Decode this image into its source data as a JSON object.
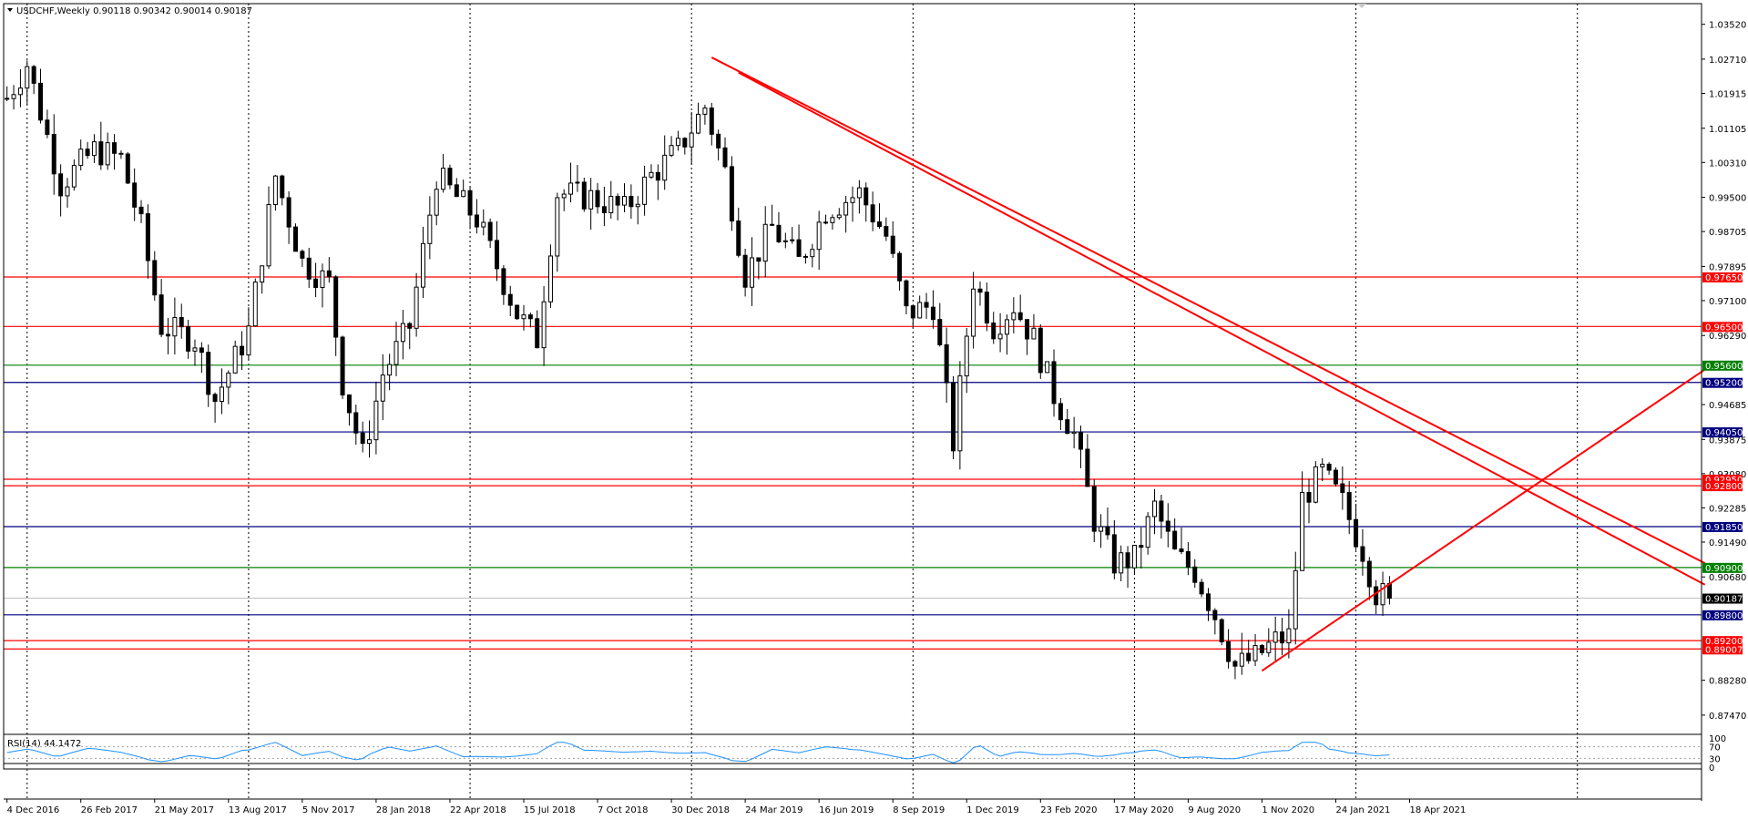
{
  "window": {
    "symbol_line": "USDCHF,Weekly  0.90118 0.90342 0.90014 0.90187",
    "colors": {
      "background": "#ffffff",
      "grid": "#000000",
      "candle": "#000000",
      "red_level": "#ff0000",
      "green_level": "#008000",
      "blue_level": "#000080",
      "trendline": "#ff0000",
      "rsi_line": "#1e90ff"
    }
  },
  "chart_data": {
    "type": "candlestick",
    "symbol": "USDCHF",
    "timeframe": "Weekly",
    "ohlc_header": {
      "open": 0.90118,
      "high": 0.90342,
      "low": 0.90014,
      "close": 0.90187
    },
    "ylim": [
      0.8715,
      1.04
    ],
    "y_ticks": [
      "1.03520",
      "1.02710",
      "1.01915",
      "1.01105",
      "1.00310",
      "0.99500",
      "0.98705",
      "0.97895",
      "0.97100",
      "0.96290",
      "0.94685",
      "0.93875",
      "0.93080",
      "0.92285",
      "0.91490",
      "0.90680",
      "0.88280",
      "0.87470"
    ],
    "x_labels": [
      "4 Dec 2016",
      "26 Feb 2017",
      "21 May 2017",
      "13 Aug 2017",
      "5 Nov 2017",
      "28 Jan 2018",
      "22 Apr 2018",
      "15 Jul 2018",
      "7 Oct 2018",
      "30 Dec 2018",
      "24 Mar 2019",
      "16 Jun 2019",
      "8 Sep 2019",
      "1 Dec 2019",
      "23 Feb 2020",
      "17 May 2020",
      "9 Aug 2020",
      "1 Nov 2020",
      "24 Jan 2021",
      "18 Apr 2021"
    ],
    "price_keypoints": [
      {
        "week": 0,
        "price": 1.018
      },
      {
        "week": 3,
        "price": 1.026
      },
      {
        "week": 8,
        "price": 0.998
      },
      {
        "week": 13,
        "price": 1.006
      },
      {
        "week": 17,
        "price": 1.004
      },
      {
        "week": 20,
        "price": 0.988
      },
      {
        "week": 23,
        "price": 0.965
      },
      {
        "week": 28,
        "price": 0.962
      },
      {
        "week": 31,
        "price": 0.948
      },
      {
        "week": 36,
        "price": 0.964
      },
      {
        "week": 40,
        "price": 1.0
      },
      {
        "week": 44,
        "price": 0.98
      },
      {
        "week": 48,
        "price": 0.975
      },
      {
        "week": 50,
        "price": 0.952
      },
      {
        "week": 53,
        "price": 0.935
      },
      {
        "week": 56,
        "price": 0.954
      },
      {
        "week": 60,
        "price": 0.965
      },
      {
        "week": 64,
        "price": 1.0
      },
      {
        "week": 70,
        "price": 0.99
      },
      {
        "week": 76,
        "price": 0.968
      },
      {
        "week": 79,
        "price": 0.962
      },
      {
        "week": 82,
        "price": 0.996
      },
      {
        "week": 87,
        "price": 0.995
      },
      {
        "week": 92,
        "price": 0.992
      },
      {
        "week": 96,
        "price": 1.0
      },
      {
        "week": 100,
        "price": 1.006
      },
      {
        "week": 104,
        "price": 1.016
      },
      {
        "week": 107,
        "price": 1.001
      },
      {
        "week": 110,
        "price": 0.977
      },
      {
        "week": 114,
        "price": 0.988
      },
      {
        "week": 118,
        "price": 0.98
      },
      {
        "week": 122,
        "price": 0.992
      },
      {
        "week": 127,
        "price": 0.996
      },
      {
        "week": 131,
        "price": 0.986
      },
      {
        "week": 134,
        "price": 0.968
      },
      {
        "week": 138,
        "price": 0.97
      },
      {
        "week": 141,
        "price": 0.938
      },
      {
        "week": 144,
        "price": 0.976
      },
      {
        "week": 147,
        "price": 0.965
      },
      {
        "week": 150,
        "price": 0.97
      },
      {
        "week": 153,
        "price": 0.962
      },
      {
        "week": 156,
        "price": 0.949
      },
      {
        "week": 159,
        "price": 0.94
      },
      {
        "week": 162,
        "price": 0.92
      },
      {
        "week": 165,
        "price": 0.91
      },
      {
        "week": 168,
        "price": 0.911
      },
      {
        "week": 171,
        "price": 0.923
      },
      {
        "week": 174,
        "price": 0.912
      },
      {
        "week": 177,
        "price": 0.908
      },
      {
        "week": 180,
        "price": 0.898
      },
      {
        "week": 183,
        "price": 0.886
      },
      {
        "week": 186,
        "price": 0.888
      },
      {
        "week": 189,
        "price": 0.892
      },
      {
        "week": 191,
        "price": 0.893
      },
      {
        "week": 193,
        "price": 0.925
      },
      {
        "week": 196,
        "price": 0.931
      },
      {
        "week": 199,
        "price": 0.924
      },
      {
        "week": 202,
        "price": 0.913
      },
      {
        "week": 204,
        "price": 0.903
      },
      {
        "week": 206,
        "price": 0.9019
      }
    ],
    "levels": [
      {
        "price": 0.9765,
        "label": "0.97650",
        "color": "#ff0000"
      },
      {
        "price": 0.965,
        "label": "0.96500",
        "color": "#ff0000"
      },
      {
        "price": 0.956,
        "label": "0.95600",
        "color": "#008000"
      },
      {
        "price": 0.952,
        "label": "0.95200",
        "color": "#000080"
      },
      {
        "price": 0.9405,
        "label": "0.94050",
        "color": "#000080"
      },
      {
        "price": 0.9295,
        "label": "0.92950",
        "color": "#ff0000"
      },
      {
        "price": 0.928,
        "label": "0.92800",
        "color": "#ff0000"
      },
      {
        "price": 0.9185,
        "label": "0.91850",
        "color": "#000080"
      },
      {
        "price": 0.909,
        "label": "0.90900",
        "color": "#008000"
      },
      {
        "price": 0.90187,
        "label": "0.90187",
        "color": "#000000"
      },
      {
        "price": 0.898,
        "label": "0.89800",
        "color": "#000080"
      },
      {
        "price": 0.892,
        "label": "0.89200",
        "color": "#ff0000"
      },
      {
        "price": 0.89007,
        "label": "0.89007",
        "color": "#ff0000"
      }
    ],
    "trendlines": [
      {
        "name": "upper-downtrend",
        "from": {
          "week": 105,
          "price": 1.0275
        },
        "to": {
          "week": 253,
          "price": 0.91
        }
      },
      {
        "name": "lower-downtrend",
        "from": {
          "week": 109,
          "price": 1.024
        },
        "to": {
          "week": 253,
          "price": 0.905
        }
      },
      {
        "name": "uptrend",
        "from": {
          "week": 187,
          "price": 0.885
        },
        "to": {
          "week": 253,
          "price": 0.955
        }
      }
    ],
    "rsi": {
      "label": "RSI(14) 44.1472",
      "period": 14,
      "value": 44.1472,
      "levels": [
        70,
        30
      ],
      "y_ticks": [
        "100",
        "70",
        "30",
        "0"
      ]
    }
  }
}
